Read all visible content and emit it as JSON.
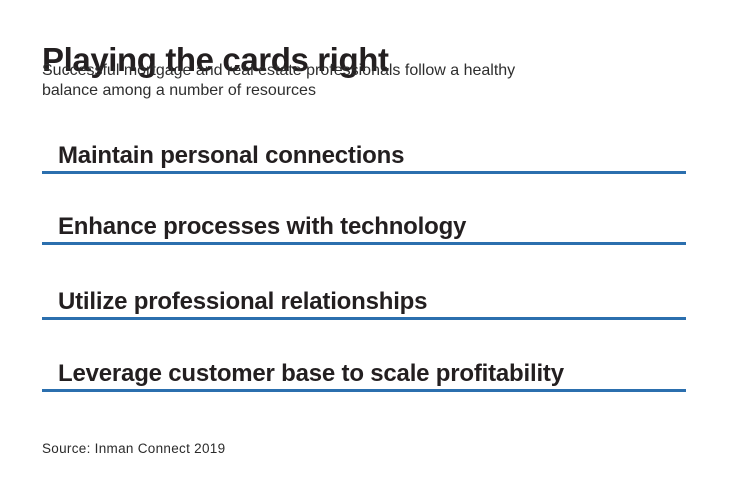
{
  "header": {
    "title": "Playing the cards right",
    "subtitle_lines": [
      "Successful mortgage and real estate professionals follow a healthy",
      "balance among a number of resources"
    ]
  },
  "items": [
    "Maintain personal connections",
    "Enhance processes with technology",
    "Utilize professional relationships",
    "Leverage customer base to scale profitability"
  ],
  "footer": {
    "source": "Source: Inman Connect 2019"
  },
  "colors": {
    "accent": "#2b6fae",
    "text": "#231f20",
    "background": "#ffffff"
  },
  "chart_data": {
    "type": "table",
    "title": "Playing the cards right",
    "subtitle": "Successful mortgage and real estate professionals follow a healthy balance among a number of resources",
    "categories": [
      "Maintain personal connections",
      "Enhance processes with technology",
      "Utilize professional relationships",
      "Leverage customer base to scale profitability"
    ],
    "source": "Inman Connect 2019",
    "legend_position": "none",
    "grid": false,
    "notes": "Qualitative list graphic; each item is rendered as a heading above a horizontal blue rule. No numeric values shown."
  }
}
